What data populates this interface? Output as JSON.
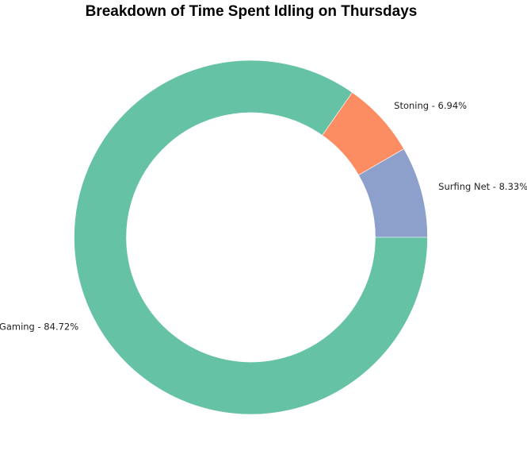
{
  "chart_data": {
    "type": "pie",
    "variant": "donut",
    "title": "Breakdown of Time Spent Idling on Thursdays",
    "slices": [
      {
        "name": "Surfing Net",
        "value": 8.33,
        "label": "Surfing Net - 8.33%",
        "color": "#8da0cb"
      },
      {
        "name": "Stoning",
        "value": 6.94,
        "label": "Stoning - 6.94%",
        "color": "#fc8d62"
      },
      {
        "name": "Gaming",
        "value": 84.72,
        "label": "Gaming - 84.72%",
        "color": "#66c2a5"
      }
    ],
    "start_angle_deg": 0,
    "direction": "counterclockwise",
    "legend": "none"
  }
}
